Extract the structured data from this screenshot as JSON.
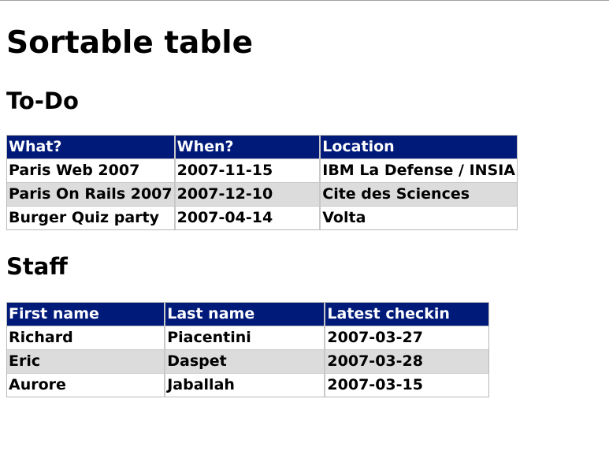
{
  "page": {
    "title": "Sortable table"
  },
  "todo": {
    "heading": "To-Do",
    "columns": [
      "What?",
      "When?",
      "Location"
    ],
    "rows": [
      [
        "Paris Web 2007",
        "2007-11-15",
        "IBM La Defense / INSIA"
      ],
      [
        "Paris On Rails 2007",
        "2007-12-10",
        "Cite des Sciences"
      ],
      [
        "Burger Quiz party",
        "2007-04-14",
        "Volta"
      ]
    ]
  },
  "staff": {
    "heading": "Staff",
    "columns": [
      "First name",
      "Last name",
      "Latest checkin"
    ],
    "rows": [
      [
        "Richard",
        "Piacentini",
        "2007-03-27"
      ],
      [
        "Eric",
        "Daspet",
        "2007-03-28"
      ],
      [
        "Aurore",
        "Jaballah",
        "2007-03-15"
      ]
    ]
  },
  "colors": {
    "header_bg": "#001a7a",
    "header_text": "#ffffff",
    "alt_row_bg": "#dcdcdc"
  }
}
